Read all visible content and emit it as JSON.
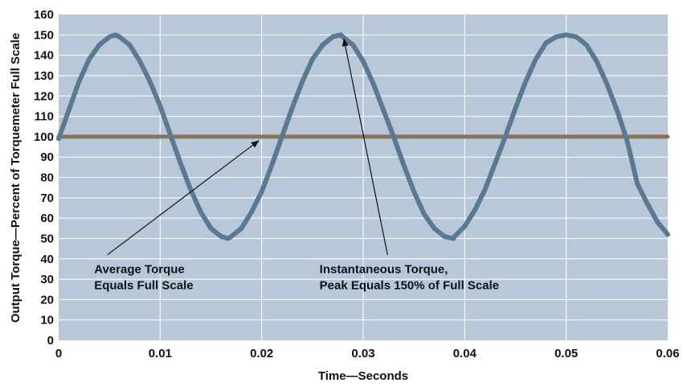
{
  "chart_data": {
    "type": "line",
    "title": "",
    "xlabel": "Time—Seconds",
    "ylabel": "Output Torque—Percent of Torquemeter Full Scale",
    "xlim": [
      0,
      0.06
    ],
    "ylim": [
      0,
      160
    ],
    "x_ticks": [
      "0",
      "0.01",
      "0.02",
      "0.03",
      "0.04",
      "0.05",
      "0.06"
    ],
    "y_ticks": [
      "0",
      "10",
      "20",
      "30",
      "40",
      "50",
      "60",
      "70",
      "80",
      "90",
      "100",
      "110",
      "120",
      "130",
      "140",
      "150",
      "160"
    ],
    "grid": true,
    "series": [
      {
        "color": "#5a7a94",
        "x": [
          0,
          0.001,
          0.002,
          0.003,
          0.004,
          0.005,
          0.0056,
          0.006,
          0.007,
          0.008,
          0.009,
          0.01,
          0.011,
          0.012,
          0.013,
          0.014,
          0.015,
          0.016,
          0.0167,
          0.017,
          0.018,
          0.019,
          0.02,
          0.021,
          0.022,
          0.023,
          0.024,
          0.025,
          0.026,
          0.027,
          0.0278,
          0.028,
          0.029,
          0.03,
          0.031,
          0.032,
          0.033,
          0.034,
          0.035,
          0.036,
          0.037,
          0.038,
          0.0389,
          0.039,
          0.04,
          0.041,
          0.042,
          0.043,
          0.044,
          0.045,
          0.046,
          0.047,
          0.048,
          0.049,
          0.05,
          0.051,
          0.052,
          0.053,
          0.054,
          0.055,
          0.056,
          0.057,
          0.058,
          0.059,
          0.06
        ],
        "y": [
          99,
          113,
          127,
          138,
          145,
          149,
          150,
          149,
          145,
          137,
          127,
          115,
          101,
          87,
          74,
          63,
          55,
          51,
          50,
          51,
          55,
          63,
          73,
          86,
          100,
          114,
          127,
          138,
          145,
          149,
          150,
          149,
          145,
          137,
          126,
          113,
          100,
          86,
          73,
          62,
          55,
          51,
          50,
          51,
          56,
          64,
          74,
          87,
          100,
          114,
          127,
          138,
          146,
          149,
          150,
          149,
          145,
          137,
          126,
          113,
          98,
          77,
          67,
          58,
          52
        ]
      },
      {
        "color": "#8c7256",
        "x": [
          0,
          0.06
        ],
        "y": [
          100,
          100
        ]
      }
    ],
    "annotations": [
      {
        "lines": [
          "Average Torque",
          "Equals Full Scale"
        ],
        "text_at": [
          0.0035,
          33
        ],
        "arrow_from": [
          0.0048,
          42
        ],
        "arrow_to": [
          0.0197,
          98
        ]
      },
      {
        "lines": [
          "Instantaneous Torque,",
          "Peak Equals 150% of Full Scale"
        ],
        "text_at": [
          0.0257,
          33
        ],
        "arrow_from": [
          0.0324,
          42
        ],
        "arrow_to": [
          0.0281,
          148
        ]
      }
    ]
  }
}
